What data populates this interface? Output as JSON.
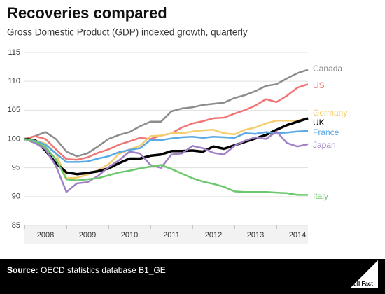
{
  "chart_data": {
    "type": "line",
    "title": "Recoveries compared",
    "subtitle": "Gross Domestic Product (GDP) indexed growth, quarterly",
    "x": [
      2008,
      2008.25,
      2008.5,
      2008.75,
      2009,
      2009.25,
      2009.5,
      2009.75,
      2010,
      2010.25,
      2010.5,
      2010.75,
      2011,
      2011.25,
      2011.5,
      2011.75,
      2012,
      2012.25,
      2012.5,
      2012.75,
      2013,
      2013.25,
      2013.5,
      2013.75,
      2014,
      2014.25,
      2014.5,
      2014.75
    ],
    "xlim": [
      2008,
      2014.75
    ],
    "xticks": [
      {
        "value": 2008.5,
        "label": "2008"
      },
      {
        "value": 2009.5,
        "label": "2009"
      },
      {
        "value": 2010.5,
        "label": "2010"
      },
      {
        "value": 2011.5,
        "label": "2011"
      },
      {
        "value": 2012.5,
        "label": "2012"
      },
      {
        "value": 2013.5,
        "label": "2013"
      },
      {
        "value": 2014.5,
        "label": "2014"
      }
    ],
    "ylim": [
      85,
      115
    ],
    "yticks": [
      85,
      90,
      95,
      100,
      105,
      110,
      115
    ],
    "grid": true,
    "series": [
      {
        "name": "Canada",
        "color": "#8c8c8c",
        "values": [
          100,
          100.5,
          101.2,
          100,
          97.8,
          97,
          97.5,
          98.7,
          100,
          100.7,
          101.2,
          102.2,
          103,
          103,
          104.8,
          105.3,
          105.5,
          105.9,
          106.1,
          106.3,
          107.1,
          107.6,
          108.3,
          109.2,
          109.5,
          110.5,
          111.4,
          112
        ]
      },
      {
        "name": "US",
        "color": "#f07676",
        "values": [
          100,
          100.5,
          100,
          98.2,
          96.5,
          96.4,
          96.8,
          97.6,
          98.2,
          99,
          99.6,
          100.2,
          100,
          100.6,
          101,
          102,
          102.7,
          103.1,
          103.6,
          103.7,
          104.4,
          105,
          105.8,
          106.9,
          106.4,
          107.5,
          108.9,
          109.5
        ]
      },
      {
        "name": "Germany",
        "color": "#f5cd6d",
        "values": [
          100,
          99.8,
          99.2,
          97.5,
          93.2,
          93.3,
          93.8,
          94.6,
          95.6,
          97.4,
          98.2,
          98.8,
          100.5,
          100.6,
          101,
          101,
          101.3,
          101.5,
          101.6,
          101,
          100.8,
          101.6,
          102,
          102.7,
          103.2,
          103.2,
          103.2,
          103.6
        ]
      },
      {
        "name": "UK",
        "color": "#000000",
        "values": [
          100,
          99.8,
          98,
          95.8,
          94.2,
          93.9,
          94.1,
          94.4,
          94.9,
          95.8,
          96.6,
          96.6,
          97.1,
          97.3,
          97.9,
          97.9,
          98,
          97.8,
          98.7,
          98.3,
          98.9,
          99.5,
          100.1,
          100.7,
          101.6,
          102.4,
          103,
          103.6
        ]
      },
      {
        "name": "France",
        "color": "#5aa9e6",
        "values": [
          100,
          99.7,
          99,
          97.5,
          96,
          96,
          96.1,
          96.6,
          97,
          97.7,
          98.1,
          98.4,
          99.8,
          99.8,
          100.1,
          100.3,
          100.4,
          100.2,
          100.4,
          100.3,
          100.2,
          101,
          100.9,
          101.2,
          101,
          101.1,
          101.3,
          101.4
        ]
      },
      {
        "name": "Japan",
        "color": "#a07fc4",
        "values": [
          100,
          99.3,
          98.2,
          95.3,
          90.8,
          92.3,
          92.5,
          93.6,
          95.1,
          96.3,
          97.8,
          97.5,
          95.5,
          95,
          97.3,
          97.5,
          98.8,
          98.4,
          97.6,
          97.3,
          98.8,
          99.7,
          100.3,
          100,
          101.3,
          99.3,
          98.7,
          99.1
        ]
      },
      {
        "name": "Italy",
        "color": "#6dc86d",
        "values": [
          100,
          99.6,
          98.6,
          96.5,
          93,
          92.8,
          93,
          93.2,
          93.7,
          94.2,
          94.5,
          94.9,
          95.2,
          95.5,
          94.8,
          94,
          93.2,
          92.6,
          92.2,
          91.7,
          90.9,
          90.8,
          90.8,
          90.8,
          90.7,
          90.6,
          90.3,
          90.3
        ]
      }
    ],
    "source_label": "Source:",
    "source_text": "OECD statistics database B1_GE",
    "logo_text": "Full Fact"
  }
}
